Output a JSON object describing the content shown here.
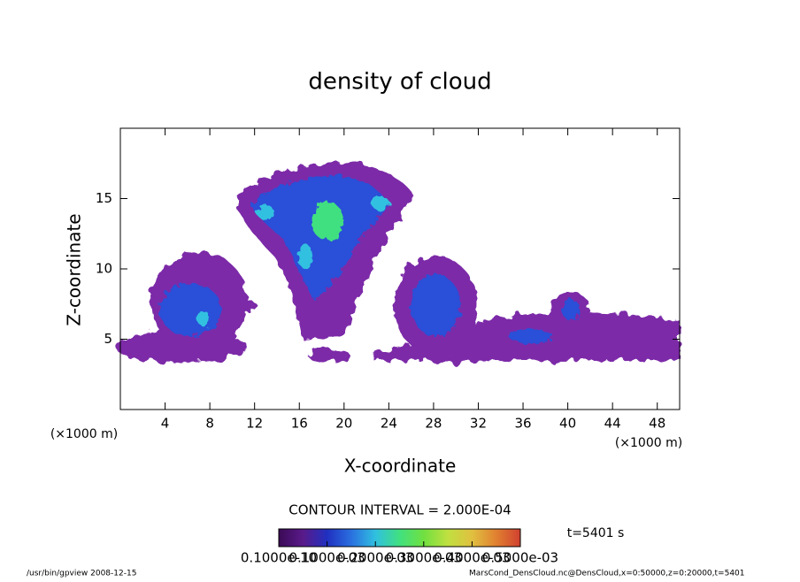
{
  "chart_data": {
    "type": "contour",
    "title": "density of cloud",
    "x_label": "X-coordinate",
    "y_label": "Z-coordinate",
    "x_unit_left": "(×1000 m)",
    "x_unit_right": "(×1000 m)",
    "xlim": [
      0,
      50
    ],
    "ylim": [
      0,
      20
    ],
    "xticks": [
      4,
      8,
      12,
      16,
      20,
      24,
      28,
      32,
      36,
      40,
      44,
      48
    ],
    "yticks": [
      5,
      10,
      15
    ],
    "contour_interval": "CONTOUR INTERVAL = 2.000E-04",
    "time_label": "t=5401 s",
    "colorbar": {
      "colors": [
        "#3a0a55",
        "#5a1a8a",
        "#2030c0",
        "#2a70e0",
        "#30c0e0",
        "#40e080",
        "#70e040",
        "#c0e040",
        "#e0c040",
        "#e08030",
        "#d04030"
      ],
      "ticks": [
        {
          "value": 1e-11,
          "label": "0.1000e-10"
        },
        {
          "value": 0.0001,
          "label": "0.1000e-03"
        },
        {
          "value": 0.0002,
          "label": "0.2000e-03"
        },
        {
          "value": 0.0003,
          "label": "0.3000e-03"
        },
        {
          "value": 0.0004,
          "label": "0.4000e-03"
        },
        {
          "value": 0.0005,
          "label": "0.5000e-03"
        }
      ]
    },
    "footer_left": "/usr/bin/gpview  2008-12-15",
    "footer_right": "MarsCond_DensCloud.nc@DensCloud,x=0:50000,z=0:20000,t=5401"
  }
}
